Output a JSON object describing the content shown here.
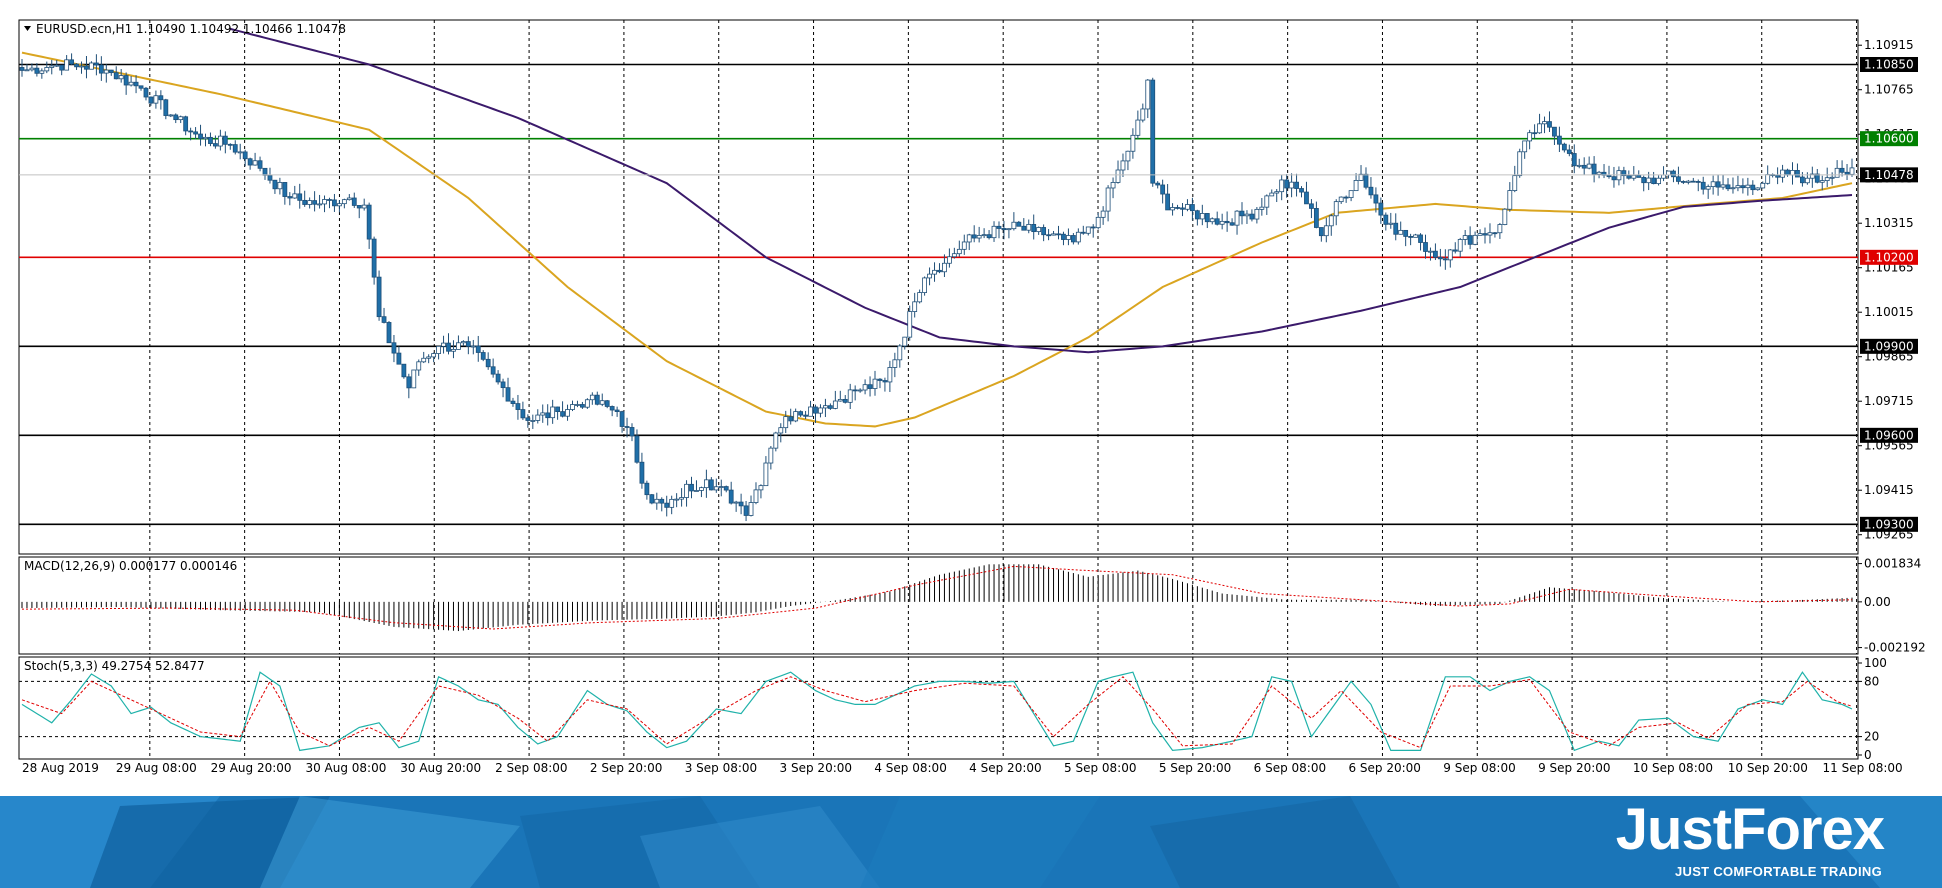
{
  "chart_data": [
    {
      "type": "candlestick",
      "header": "EURUSD.ecn,H1  1.10490 1.10492 1.10466 1.10478",
      "ylim": [
        1.092,
        1.11
      ],
      "y_ticks": [
        "1.10915",
        "1.10765",
        "1.10615",
        "1.10465",
        "1.10315",
        "1.10165",
        "1.10015",
        "1.09865",
        "1.09715",
        "1.09565",
        "1.09415",
        "1.09265"
      ],
      "x_ticks": [
        "28 Aug 2019",
        "29 Aug 08:00",
        "29 Aug 20:00",
        "30 Aug 08:00",
        "30 Aug 20:00",
        "2 Sep 08:00",
        "2 Sep 20:00",
        "3 Sep 08:00",
        "3 Sep 20:00",
        "4 Sep 08:00",
        "4 Sep 20:00",
        "5 Sep 08:00",
        "5 Sep 20:00",
        "6 Sep 08:00",
        "6 Sep 20:00",
        "9 Sep 08:00",
        "9 Sep 20:00",
        "10 Sep 08:00",
        "10 Sep 20:00",
        "11 Sep 08:00"
      ],
      "current_price": "1.10478",
      "horizontal_levels": [
        {
          "price": 1.1085,
          "label": "1.10850",
          "color": "#000000"
        },
        {
          "price": 1.106,
          "label": "1.10600",
          "color": "#008000"
        },
        {
          "price": 1.102,
          "label": "1.10200",
          "color": "#e00000"
        },
        {
          "price": 1.099,
          "label": "1.09900",
          "color": "#000000"
        },
        {
          "price": 1.096,
          "label": "1.09600",
          "color": "#000000"
        },
        {
          "price": 1.093,
          "label": "1.09300",
          "color": "#000000"
        }
      ],
      "close_anchors": [
        [
          0,
          1.1083
        ],
        [
          8,
          1.1085
        ],
        [
          16,
          1.1084
        ],
        [
          24,
          1.1077
        ],
        [
          30,
          1.1068
        ],
        [
          36,
          1.106
        ],
        [
          42,
          1.1058
        ],
        [
          48,
          1.105
        ],
        [
          54,
          1.104
        ],
        [
          60,
          1.1038
        ],
        [
          66,
          1.104
        ],
        [
          69,
          1.1038
        ],
        [
          72,
          1.1
        ],
        [
          75,
          1.0988
        ],
        [
          78,
          1.0976
        ],
        [
          80,
          1.0985
        ],
        [
          84,
          1.099
        ],
        [
          90,
          1.099
        ],
        [
          96,
          1.0978
        ],
        [
          102,
          1.0965
        ],
        [
          108,
          1.0968
        ],
        [
          114,
          1.0972
        ],
        [
          120,
          1.0968
        ],
        [
          123,
          1.0958
        ],
        [
          126,
          1.094
        ],
        [
          130,
          1.0935
        ],
        [
          134,
          1.0942
        ],
        [
          138,
          1.0945
        ],
        [
          142,
          1.094
        ],
        [
          146,
          1.0935
        ],
        [
          149,
          1.0945
        ],
        [
          152,
          1.0962
        ],
        [
          156,
          1.0968
        ],
        [
          162,
          1.097
        ],
        [
          168,
          1.0975
        ],
        [
          174,
          1.0978
        ],
        [
          178,
          1.0995
        ],
        [
          182,
          1.1015
        ],
        [
          186,
          1.1018
        ],
        [
          190,
          1.1025
        ],
        [
          194,
          1.1028
        ],
        [
          200,
          1.103
        ],
        [
          206,
          1.1028
        ],
        [
          212,
          1.1025
        ],
        [
          216,
          1.103
        ],
        [
          220,
          1.1045
        ],
        [
          224,
          1.106
        ],
        [
          226,
          1.107
        ],
        [
          227,
          1.108
        ],
        [
          228,
          1.1045
        ],
        [
          231,
          1.1038
        ],
        [
          236,
          1.1035
        ],
        [
          242,
          1.1032
        ],
        [
          248,
          1.1035
        ],
        [
          254,
          1.1045
        ],
        [
          258,
          1.1042
        ],
        [
          262,
          1.1028
        ],
        [
          266,
          1.104
        ],
        [
          270,
          1.1048
        ],
        [
          274,
          1.1035
        ],
        [
          278,
          1.1028
        ],
        [
          282,
          1.1025
        ],
        [
          286,
          1.102
        ],
        [
          290,
          1.1025
        ],
        [
          294,
          1.1028
        ],
        [
          298,
          1.103
        ],
        [
          302,
          1.1055
        ],
        [
          306,
          1.1065
        ],
        [
          310,
          1.106
        ],
        [
          314,
          1.105
        ],
        [
          320,
          1.1048
        ],
        [
          326,
          1.1046
        ],
        [
          332,
          1.1047
        ],
        [
          338,
          1.1045
        ],
        [
          344,
          1.1043
        ],
        [
          350,
          1.1045
        ],
        [
          356,
          1.1048
        ],
        [
          362,
          1.1046
        ],
        [
          366,
          1.105
        ],
        [
          369,
          1.1048
        ]
      ],
      "moving_averages": [
        {
          "color": "#daa520",
          "points": [
            [
              0,
              1.1089
            ],
            [
              40,
              1.1075
            ],
            [
              70,
              1.1063
            ],
            [
              90,
              1.104
            ],
            [
              110,
              1.101
            ],
            [
              130,
              1.0985
            ],
            [
              150,
              1.0968
            ],
            [
              162,
              1.0964
            ],
            [
              172,
              1.0963
            ],
            [
              180,
              1.0966
            ],
            [
              200,
              1.098
            ],
            [
              215,
              1.0993
            ],
            [
              230,
              1.101
            ],
            [
              250,
              1.1025
            ],
            [
              265,
              1.1035
            ],
            [
              285,
              1.1038
            ],
            [
              300,
              1.1036
            ],
            [
              320,
              1.1035
            ],
            [
              340,
              1.1038
            ],
            [
              355,
              1.104
            ],
            [
              369,
              1.1045
            ]
          ]
        },
        {
          "color": "#3b1a6b",
          "points": [
            [
              42,
              1.1097
            ],
            [
              70,
              1.1085
            ],
            [
              100,
              1.1067
            ],
            [
              130,
              1.1045
            ],
            [
              150,
              1.102
            ],
            [
              170,
              1.1003
            ],
            [
              185,
              1.0993
            ],
            [
              200,
              1.099
            ],
            [
              215,
              1.0988
            ],
            [
              230,
              1.099
            ],
            [
              250,
              1.0995
            ],
            [
              270,
              1.1002
            ],
            [
              290,
              1.101
            ],
            [
              305,
              1.102
            ],
            [
              320,
              1.103
            ],
            [
              335,
              1.1037
            ],
            [
              350,
              1.1039
            ],
            [
              369,
              1.1041
            ]
          ]
        }
      ]
    },
    {
      "type": "histogram",
      "header": "MACD(12,26,9) 0.000177 0.000146",
      "ylim": [
        -0.0025,
        0.00215
      ],
      "y_ticks": [
        "0.001834",
        "0.00",
        "-0.002192"
      ],
      "macd_anchors": [
        [
          0,
          -0.0003
        ],
        [
          20,
          -0.00025
        ],
        [
          40,
          -0.0004
        ],
        [
          60,
          -0.0005
        ],
        [
          75,
          -0.0012
        ],
        [
          88,
          -0.0014
        ],
        [
          100,
          -0.0011
        ],
        [
          115,
          -0.0009
        ],
        [
          130,
          -0.0008
        ],
        [
          140,
          -0.0007
        ],
        [
          148,
          -0.0005
        ],
        [
          155,
          -0.0002
        ],
        [
          165,
          0.0001
        ],
        [
          175,
          0.0005
        ],
        [
          185,
          0.0013
        ],
        [
          195,
          0.0018
        ],
        [
          205,
          0.0018
        ],
        [
          215,
          0.0012
        ],
        [
          225,
          0.0015
        ],
        [
          232,
          0.0011
        ],
        [
          242,
          0.0004
        ],
        [
          255,
          0.0001
        ],
        [
          270,
          0.0001
        ],
        [
          285,
          -0.0002
        ],
        [
          298,
          -0.0001
        ],
        [
          308,
          0.0007
        ],
        [
          318,
          0.0005
        ],
        [
          330,
          0.0002
        ],
        [
          345,
          0.0
        ],
        [
          360,
          0.0001
        ],
        [
          369,
          0.0002
        ]
      ],
      "signal_anchors": [
        [
          0,
          -0.00035
        ],
        [
          30,
          -0.0003
        ],
        [
          55,
          -0.0004
        ],
        [
          75,
          -0.001
        ],
        [
          95,
          -0.0013
        ],
        [
          115,
          -0.001
        ],
        [
          140,
          -0.0008
        ],
        [
          160,
          -0.0003
        ],
        [
          180,
          0.0008
        ],
        [
          200,
          0.0017
        ],
        [
          215,
          0.0015
        ],
        [
          232,
          0.0013
        ],
        [
          250,
          0.0004
        ],
        [
          270,
          0.0001
        ],
        [
          290,
          -0.0002
        ],
        [
          300,
          -0.0001
        ],
        [
          312,
          0.0006
        ],
        [
          330,
          0.0003
        ],
        [
          350,
          0.0
        ],
        [
          369,
          0.0001
        ]
      ]
    },
    {
      "type": "line",
      "header": "Stoch(5,3,3) 49.2754 52.8477",
      "ylim": [
        0,
        100
      ],
      "y_ticks": [
        "100",
        "80",
        "20",
        "0"
      ],
      "main_anchors": [
        [
          0,
          55
        ],
        [
          6,
          35
        ],
        [
          10,
          60
        ],
        [
          14,
          88
        ],
        [
          18,
          75
        ],
        [
          22,
          45
        ],
        [
          26,
          52
        ],
        [
          30,
          35
        ],
        [
          36,
          20
        ],
        [
          44,
          15
        ],
        [
          48,
          90
        ],
        [
          52,
          75
        ],
        [
          56,
          5
        ],
        [
          62,
          10
        ],
        [
          68,
          30
        ],
        [
          72,
          35
        ],
        [
          76,
          8
        ],
        [
          80,
          15
        ],
        [
          84,
          85
        ],
        [
          88,
          75
        ],
        [
          92,
          60
        ],
        [
          96,
          55
        ],
        [
          100,
          30
        ],
        [
          104,
          12
        ],
        [
          108,
          20
        ],
        [
          114,
          70
        ],
        [
          118,
          55
        ],
        [
          122,
          48
        ],
        [
          126,
          25
        ],
        [
          130,
          8
        ],
        [
          134,
          15
        ],
        [
          140,
          50
        ],
        [
          145,
          45
        ],
        [
          150,
          80
        ],
        [
          155,
          90
        ],
        [
          160,
          70
        ],
        [
          164,
          60
        ],
        [
          168,
          55
        ],
        [
          172,
          55
        ],
        [
          176,
          65
        ],
        [
          180,
          75
        ],
        [
          185,
          80
        ],
        [
          190,
          80
        ],
        [
          195,
          78
        ],
        [
          200,
          80
        ],
        [
          208,
          10
        ],
        [
          212,
          15
        ],
        [
          217,
          80
        ],
        [
          220,
          85
        ],
        [
          224,
          90
        ],
        [
          228,
          35
        ],
        [
          232,
          5
        ],
        [
          238,
          8
        ],
        [
          244,
          15
        ],
        [
          248,
          20
        ],
        [
          252,
          85
        ],
        [
          256,
          80
        ],
        [
          260,
          20
        ],
        [
          264,
          50
        ],
        [
          268,
          80
        ],
        [
          272,
          55
        ],
        [
          276,
          5
        ],
        [
          282,
          5
        ],
        [
          287,
          85
        ],
        [
          292,
          85
        ],
        [
          296,
          70
        ],
        [
          300,
          80
        ],
        [
          304,
          85
        ],
        [
          308,
          70
        ],
        [
          313,
          5
        ],
        [
          318,
          15
        ],
        [
          322,
          10
        ],
        [
          326,
          38
        ],
        [
          332,
          40
        ],
        [
          337,
          20
        ],
        [
          342,
          15
        ],
        [
          346,
          50
        ],
        [
          351,
          60
        ],
        [
          355,
          55
        ],
        [
          359,
          90
        ],
        [
          363,
          60
        ],
        [
          367,
          55
        ],
        [
          369,
          50
        ]
      ],
      "signal_anchors": [
        [
          0,
          60
        ],
        [
          8,
          45
        ],
        [
          14,
          80
        ],
        [
          20,
          65
        ],
        [
          28,
          45
        ],
        [
          36,
          25
        ],
        [
          44,
          20
        ],
        [
          50,
          80
        ],
        [
          56,
          25
        ],
        [
          62,
          10
        ],
        [
          70,
          30
        ],
        [
          76,
          15
        ],
        [
          84,
          75
        ],
        [
          92,
          65
        ],
        [
          100,
          40
        ],
        [
          106,
          15
        ],
        [
          114,
          60
        ],
        [
          122,
          50
        ],
        [
          130,
          12
        ],
        [
          140,
          45
        ],
        [
          148,
          70
        ],
        [
          155,
          85
        ],
        [
          162,
          70
        ],
        [
          170,
          58
        ],
        [
          180,
          70
        ],
        [
          190,
          78
        ],
        [
          200,
          75
        ],
        [
          208,
          20
        ],
        [
          215,
          55
        ],
        [
          222,
          85
        ],
        [
          228,
          50
        ],
        [
          234,
          10
        ],
        [
          244,
          12
        ],
        [
          252,
          75
        ],
        [
          260,
          40
        ],
        [
          266,
          70
        ],
        [
          274,
          25
        ],
        [
          282,
          8
        ],
        [
          288,
          75
        ],
        [
          296,
          75
        ],
        [
          304,
          82
        ],
        [
          312,
          25
        ],
        [
          320,
          10
        ],
        [
          326,
          30
        ],
        [
          334,
          35
        ],
        [
          340,
          18
        ],
        [
          348,
          55
        ],
        [
          355,
          58
        ],
        [
          360,
          80
        ],
        [
          366,
          58
        ],
        [
          369,
          53
        ]
      ]
    }
  ],
  "brand": {
    "name": "JustForex",
    "tagline": "JUST COMFORTABLE TRADING"
  },
  "colors": {
    "bull_candle": "#ffffff",
    "bear_candle": "#1f6fa8",
    "grid": "#000000",
    "banner": "#1a75b8"
  }
}
